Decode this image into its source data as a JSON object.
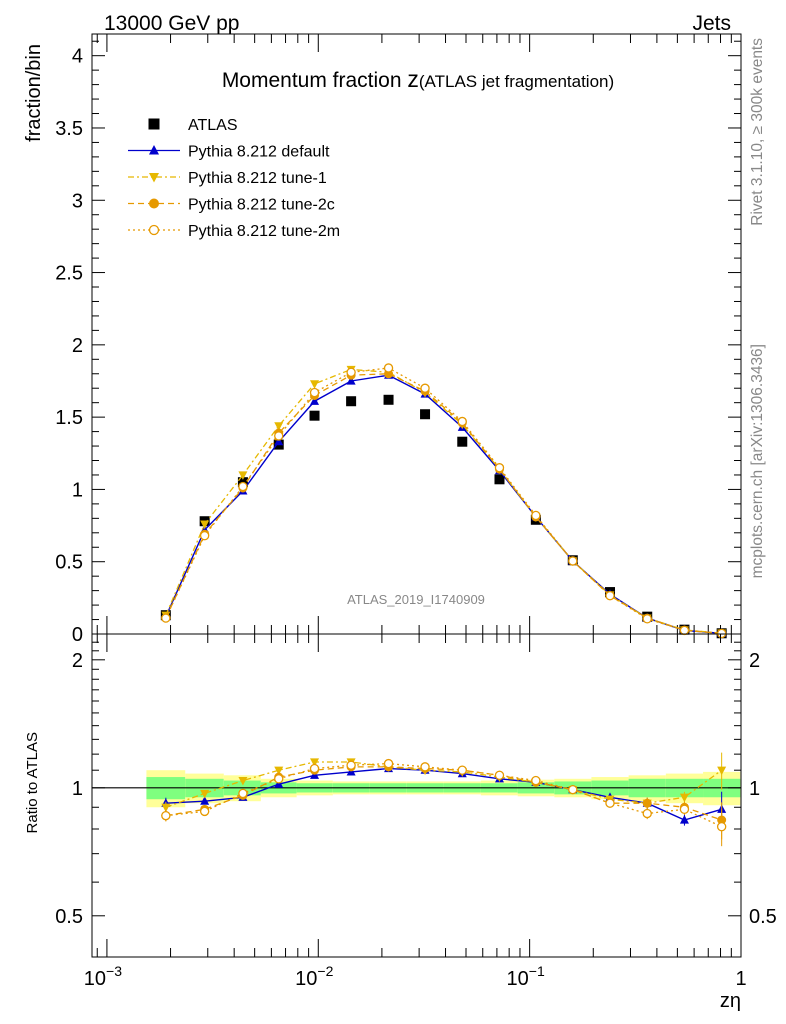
{
  "header": {
    "left": "13000 GeV pp",
    "right": "Jets"
  },
  "side_labels": {
    "top": "Rivet 3.1.10, ≥ 300k events",
    "bottom": "mcplots.cern.ch [arXiv:1306.3436]"
  },
  "chart_data": [
    {
      "type": "scatter",
      "title_main": "Momentum fraction ",
      "title_var": "z",
      "title_sub": "(ATLAS jet fragmentation)",
      "ylabel": "fraction/bin",
      "xlabel": "zη",
      "analysis": "ATLAS_2019_I1740909",
      "xscale": "log",
      "xlim": [
        0.00085,
        1.0
      ],
      "ylim": [
        0,
        4.15
      ],
      "yticks": [
        0,
        0.5,
        1,
        1.5,
        2,
        2.5,
        3,
        3.5,
        4
      ],
      "ytick_labels": [
        "0",
        "0.5",
        "1",
        "1.5",
        "2",
        "2.5",
        "3",
        "3.5",
        "4"
      ],
      "x": [
        0.0019,
        0.0029,
        0.0044,
        0.0065,
        0.0096,
        0.0143,
        0.0215,
        0.032,
        0.048,
        0.072,
        0.107,
        0.16,
        0.24,
        0.36,
        0.54,
        0.81
      ],
      "series": [
        {
          "name": "ATLAS",
          "color": "#000000",
          "marker": "square",
          "dash": "none",
          "values": [
            0.13,
            0.78,
            1.05,
            1.31,
            1.51,
            1.61,
            1.62,
            1.52,
            1.33,
            1.07,
            0.79,
            0.51,
            0.29,
            0.12,
            0.03,
            0.005
          ]
        },
        {
          "name": "Pythia 8.212 default",
          "color": "#0000cc",
          "marker": "triangle-up",
          "dash": "solid",
          "values": [
            0.12,
            0.72,
            0.99,
            1.33,
            1.61,
            1.75,
            1.79,
            1.66,
            1.43,
            1.13,
            0.81,
            0.505,
            0.275,
            0.11,
            0.025,
            0.005
          ]
        },
        {
          "name": "Pythia 8.212 tune-1",
          "color": "#e6b800",
          "marker": "triangle-down",
          "dash": "dashdot",
          "values": [
            0.13,
            0.76,
            1.1,
            1.44,
            1.73,
            1.83,
            1.81,
            1.67,
            1.45,
            1.14,
            0.81,
            0.505,
            0.27,
            0.11,
            0.028,
            0.006
          ]
        },
        {
          "name": "Pythia 8.212 tune-2c",
          "color": "#e69900",
          "marker": "circle-filled",
          "dash": "dashed",
          "values": [
            0.11,
            0.69,
            1.01,
            1.39,
            1.65,
            1.79,
            1.8,
            1.68,
            1.46,
            1.14,
            0.81,
            0.505,
            0.265,
            0.11,
            0.026,
            0.004
          ]
        },
        {
          "name": "Pythia 8.212 tune-2m",
          "color": "#e69900",
          "marker": "circle-open",
          "dash": "dotted",
          "values": [
            0.11,
            0.68,
            1.02,
            1.37,
            1.67,
            1.81,
            1.84,
            1.7,
            1.47,
            1.15,
            0.82,
            0.505,
            0.265,
            0.105,
            0.025,
            0.004
          ]
        }
      ]
    },
    {
      "type": "scatter",
      "ylabel": "Ratio to ATLAS",
      "xscale": "log",
      "yscale": "log",
      "xlim": [
        0.00085,
        1.0
      ],
      "ylim": [
        0.4,
        2.3
      ],
      "yticks": [
        0.5,
        1,
        2
      ],
      "ytick_labels": [
        "0.5",
        "1",
        "2"
      ],
      "xticks": [
        0.001,
        0.01,
        0.1,
        1
      ],
      "xtick_labels": [
        [
          "10",
          "−3"
        ],
        [
          "10",
          "−2"
        ],
        [
          "10",
          "−1"
        ],
        [
          "1",
          ""
        ]
      ],
      "x": [
        0.0019,
        0.0029,
        0.0044,
        0.0065,
        0.0096,
        0.0143,
        0.0215,
        0.032,
        0.048,
        0.072,
        0.107,
        0.16,
        0.24,
        0.36,
        0.54,
        0.81
      ],
      "band_inner": [
        0.06,
        0.05,
        0.04,
        0.03,
        0.025,
        0.025,
        0.025,
        0.025,
        0.025,
        0.025,
        0.03,
        0.035,
        0.04,
        0.05,
        0.05,
        0.05
      ],
      "band_outer": [
        0.1,
        0.08,
        0.07,
        0.05,
        0.04,
        0.035,
        0.035,
        0.035,
        0.035,
        0.04,
        0.045,
        0.05,
        0.06,
        0.07,
        0.08,
        0.09
      ],
      "band_inner_color": "#7fff7f",
      "band_outer_color": "#ffff99",
      "series": [
        {
          "name": "Pythia 8.212 default",
          "color": "#0000cc",
          "marker": "triangle-up",
          "dash": "solid",
          "values": [
            0.92,
            0.93,
            0.95,
            1.02,
            1.07,
            1.09,
            1.11,
            1.1,
            1.08,
            1.05,
            1.03,
            0.99,
            0.95,
            0.92,
            0.84,
            0.89
          ]
        },
        {
          "name": "Pythia 8.212 tune-1",
          "color": "#e6b800",
          "marker": "triangle-down",
          "dash": "dashdot",
          "values": [
            0.9,
            0.97,
            1.04,
            1.1,
            1.15,
            1.15,
            1.12,
            1.1,
            1.09,
            1.06,
            1.03,
            0.99,
            0.94,
            0.92,
            0.95,
            1.1
          ]
        },
        {
          "name": "Pythia 8.212 tune-2c",
          "color": "#e69900",
          "marker": "circle-filled",
          "dash": "dashed",
          "values": [
            0.86,
            0.89,
            0.96,
            1.06,
            1.1,
            1.12,
            1.12,
            1.11,
            1.1,
            1.07,
            1.03,
            0.99,
            0.92,
            0.92,
            0.9,
            0.84
          ]
        },
        {
          "name": "Pythia 8.212 tune-2m",
          "color": "#e69900",
          "marker": "circle-open",
          "dash": "dotted",
          "values": [
            0.86,
            0.88,
            0.97,
            1.05,
            1.11,
            1.13,
            1.14,
            1.12,
            1.1,
            1.07,
            1.04,
            0.99,
            0.92,
            0.87,
            0.89,
            0.81
          ]
        }
      ]
    }
  ]
}
